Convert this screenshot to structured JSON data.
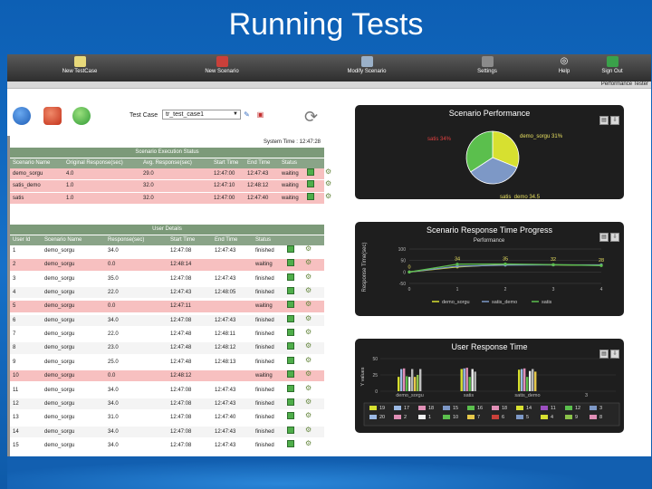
{
  "slide_title": "Running Tests",
  "toolbar": {
    "items": [
      {
        "label": "New TestCase",
        "icon": "new-testcase-icon"
      },
      {
        "label": "New Scenario",
        "icon": "new-scenario-icon"
      },
      {
        "label": "Modify Scenario",
        "icon": "modify-scenario-icon"
      },
      {
        "label": "Settings",
        "icon": "settings-icon"
      },
      {
        "label": "Help",
        "icon": "help-icon"
      },
      {
        "label": "Sign Out",
        "icon": "sign-out-icon"
      }
    ],
    "subtitle": "Performance Tester"
  },
  "controls": {
    "testcase_label": "Test Case",
    "testcase_value": "tr_test_case1"
  },
  "system_time": "System Time : 12:47:28",
  "scenario_status": {
    "title": "Scenario Execution Status",
    "columns": [
      "Scenario Name",
      "Original Response(sec)",
      "Avg. Response(sec)",
      "Start Time",
      "End Time",
      "Status"
    ],
    "rows": [
      [
        "demo_sorgu",
        "4.0",
        "29.0",
        "12:47:00",
        "12:47:43",
        "waiting"
      ],
      [
        "satis_demo",
        "1.0",
        "32.0",
        "12:47:10",
        "12:48:12",
        "waiting"
      ],
      [
        "satis",
        "1.0",
        "32.0",
        "12:47:00",
        "12:47:40",
        "waiting"
      ]
    ]
  },
  "user_details": {
    "title": "User Details",
    "columns": [
      "User Id",
      "Scenario Name",
      "Response(sec)",
      "Start Time",
      "End Time",
      "Status"
    ],
    "rows": [
      [
        "1",
        "demo_sorgu",
        "34.0",
        "12:47:08",
        "12:47:43",
        "finished"
      ],
      [
        "2",
        "demo_sorgu",
        "0.0",
        "12:48:14",
        "",
        "waiting"
      ],
      [
        "3",
        "demo_sorgu",
        "35.0",
        "12:47:08",
        "12:47:43",
        "finished"
      ],
      [
        "4",
        "demo_sorgu",
        "22.0",
        "12:47:43",
        "12:48:05",
        "finished"
      ],
      [
        "5",
        "demo_sorgu",
        "0.0",
        "12:47:11",
        "",
        "waiting"
      ],
      [
        "6",
        "demo_sorgu",
        "34.0",
        "12:47:08",
        "12:47:43",
        "finished"
      ],
      [
        "7",
        "demo_sorgu",
        "22.0",
        "12:47:48",
        "12:48:11",
        "finished"
      ],
      [
        "8",
        "demo_sorgu",
        "23.0",
        "12:47:48",
        "12:48:12",
        "finished"
      ],
      [
        "9",
        "demo_sorgu",
        "25.0",
        "12:47:48",
        "12:48:13",
        "finished"
      ],
      [
        "10",
        "demo_sorgu",
        "0.0",
        "12:48:12",
        "",
        "waiting"
      ],
      [
        "11",
        "demo_sorgu",
        "34.0",
        "12:47:08",
        "12:47:43",
        "finished"
      ],
      [
        "12",
        "demo_sorgu",
        "34.0",
        "12:47:08",
        "12:47:43",
        "finished"
      ],
      [
        "13",
        "demo_sorgu",
        "31.0",
        "12:47:08",
        "12:47:40",
        "finished"
      ],
      [
        "14",
        "demo_sorgu",
        "34.0",
        "12:47:08",
        "12:47:43",
        "finished"
      ],
      [
        "15",
        "demo_sorgu",
        "34.0",
        "12:47:08",
        "12:47:43",
        "finished"
      ]
    ]
  },
  "panels": {
    "performance": {
      "title": "Scenario Performance"
    },
    "progress": {
      "title": "Scenario Response Time Progress",
      "subtitle": "Performance",
      "ylabel": "Response Time(sec)"
    },
    "user_response": {
      "title": "User Response Time",
      "ylabel": "Y values"
    }
  },
  "chart_data": [
    {
      "type": "pie",
      "title": "Scenario Performance",
      "slices": [
        {
          "label": "demo_sorgu 31%",
          "value": 31,
          "color": "#d7e030"
        },
        {
          "label": "satis 34%",
          "value": 34,
          "color": "#5bbf4d"
        },
        {
          "label": "satis_demo 34.5",
          "value": 34.5,
          "color": "#7d98c6"
        }
      ]
    },
    {
      "type": "line",
      "title": "Scenario Response Time Progress",
      "subtitle": "Performance",
      "ylabel": "Response Time(sec)",
      "x": [
        0,
        1,
        2,
        3,
        4
      ],
      "ylim": [
        -50,
        100
      ],
      "yticks": [
        "100",
        "50",
        "0",
        "-50"
      ],
      "series": [
        {
          "name": "demo_sorgu",
          "color": "#d7e030",
          "values": [
            0,
            22,
            33,
            31,
            29
          ]
        },
        {
          "name": "satis_demo",
          "color": "#7d98c6",
          "values": [
            0,
            25,
            30,
            31,
            31
          ]
        },
        {
          "name": "satis",
          "color": "#5bbf4d",
          "values": [
            0,
            34,
            35,
            32,
            28
          ]
        }
      ],
      "point_labels": [
        "0",
        "34",
        "35",
        "32",
        "28"
      ]
    },
    {
      "type": "bar",
      "title": "User Response Time",
      "ylabel": "Y values",
      "categories": [
        "demo_sorgu",
        "satis",
        "satis_demo",
        "3"
      ],
      "yticks": [
        "50",
        "25",
        "0"
      ],
      "ylim": [
        0,
        50
      ],
      "groups": [
        [
          22,
          34,
          35,
          23,
          22,
          34,
          22,
          25,
          34
        ],
        [
          34,
          35,
          36,
          22,
          34,
          30
        ],
        [
          33,
          34,
          35,
          22,
          31,
          34,
          30
        ],
        []
      ],
      "legend": [
        "19",
        "17",
        "18",
        "15",
        "16",
        "18",
        "14",
        "11",
        "12",
        "3",
        "20",
        "2",
        "1",
        "10",
        "7",
        "6",
        "5",
        "4",
        "9",
        "8"
      ]
    }
  ]
}
